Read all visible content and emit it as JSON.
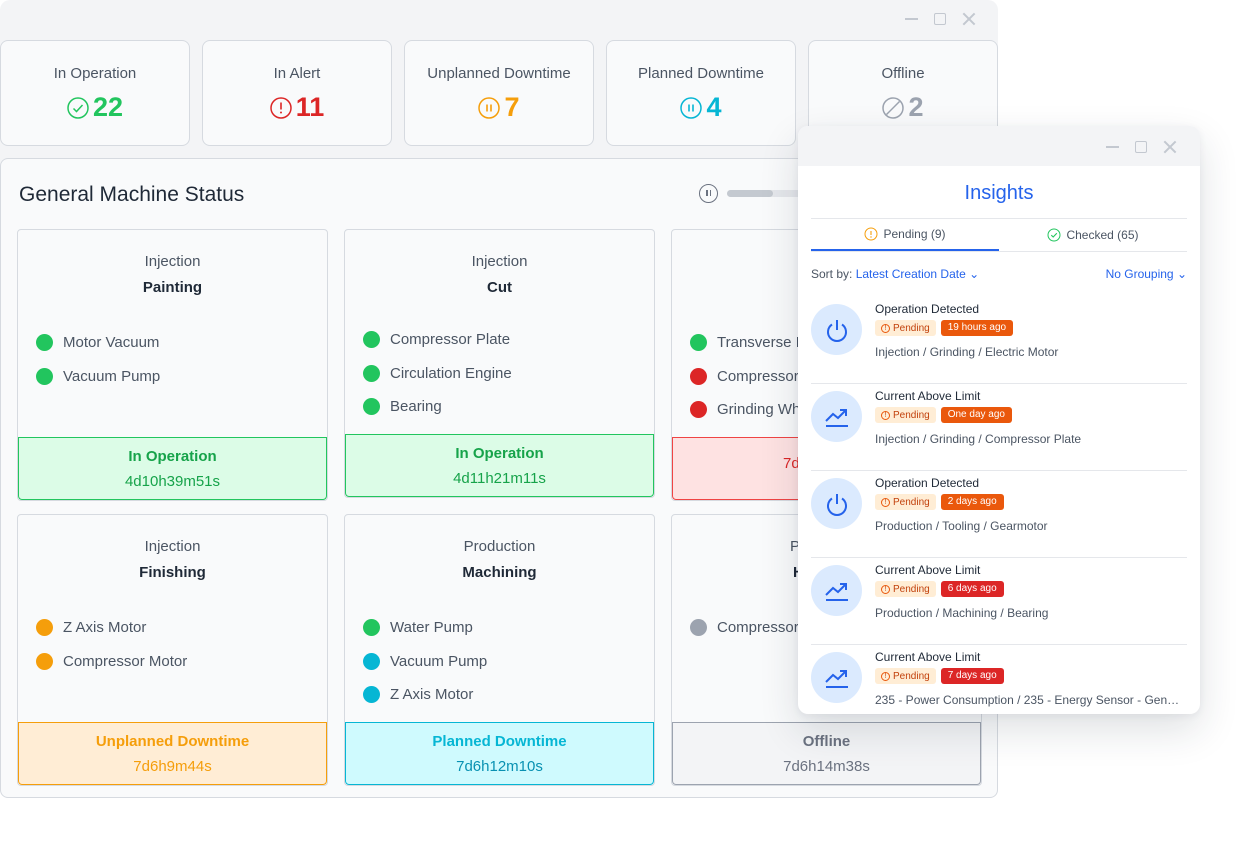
{
  "stats": [
    {
      "label": "In Operation",
      "value": "22",
      "color": "#22c55e",
      "icon": "check-circle-icon"
    },
    {
      "label": "In Alert",
      "value": "11",
      "color": "#dc2626",
      "icon": "alert-circle-icon"
    },
    {
      "label": "Unplanned Downtime",
      "value": "7",
      "color": "#f59e0b",
      "icon": "pause-circle-icon"
    },
    {
      "label": "Planned Downtime",
      "value": "4",
      "color": "#06b6d4",
      "icon": "pause-circle-icon"
    },
    {
      "label": "Offline",
      "value": "2",
      "color": "#9ca3af",
      "icon": "offline-icon"
    }
  ],
  "panel": {
    "title": "General Machine Status",
    "progress": 0.38
  },
  "machines": [
    {
      "area": "Injection",
      "name": "Painting",
      "items": [
        {
          "label": "Motor Vacuum",
          "color": "#22c55e"
        },
        {
          "label": "Vacuum Pump",
          "color": "#22c55e"
        }
      ],
      "status": "In Operation",
      "time": "4d10h39m51s",
      "theme": "green"
    },
    {
      "area": "Injection",
      "name": "Cut",
      "items": [
        {
          "label": "Compressor Plate",
          "color": "#22c55e"
        },
        {
          "label": "Circulation Engine",
          "color": "#22c55e"
        },
        {
          "label": "Bearing",
          "color": "#22c55e"
        }
      ],
      "status": "In Operation",
      "time": "4d11h21m11s",
      "theme": "green"
    },
    {
      "area": "I",
      "name": "",
      "items": [
        {
          "label": "Transverse I",
          "color": "#22c55e"
        },
        {
          "label": "Compressor",
          "color": "#dc2626"
        },
        {
          "label": "Grinding Wh",
          "color": "#dc2626"
        }
      ],
      "status": "",
      "time": "7d",
      "theme": "red"
    },
    {
      "area": "Injection",
      "name": "Finishing",
      "items": [
        {
          "label": "Z Axis Motor",
          "color": "#f59e0b"
        },
        {
          "label": "Compressor Motor",
          "color": "#f59e0b"
        }
      ],
      "status": "Unplanned Downtime",
      "time": "7d6h9m44s",
      "theme": "orange"
    },
    {
      "area": "Production",
      "name": "Machining",
      "items": [
        {
          "label": "Water Pump",
          "color": "#22c55e"
        },
        {
          "label": "Vacuum Pump",
          "color": "#06b6d4"
        },
        {
          "label": "Z Axis Motor",
          "color": "#06b6d4"
        }
      ],
      "status": "Planned Downtime",
      "time": "7d6h12m10s",
      "theme": "cyan"
    },
    {
      "area": "P",
      "name": "H",
      "items": [
        {
          "label": "Compressor",
          "color": "#9ca3af"
        }
      ],
      "status": "Offline",
      "time": "7d6h14m38s",
      "theme": "gray"
    }
  ],
  "insights": {
    "title": "Insights",
    "tabs": [
      {
        "label": "Pending (9)",
        "icon": "info-circle-icon",
        "active": true
      },
      {
        "label": "Checked (65)",
        "icon": "check-circle-icon",
        "active": false
      }
    ],
    "sort_label": "Sort by:",
    "sort_value": "Latest Creation Date",
    "grouping": "No Grouping",
    "items": [
      {
        "title": "Operation Detected",
        "icon": "power-icon",
        "status": "Pending",
        "time": "19 hours ago",
        "time_color": "#ea580c",
        "path": "Injection / Grinding / Electric Motor"
      },
      {
        "title": "Current Above Limit",
        "icon": "trend-up-icon",
        "status": "Pending",
        "time": "One day ago",
        "time_color": "#ea580c",
        "path": "Injection / Grinding / Compressor Plate"
      },
      {
        "title": "Operation Detected",
        "icon": "power-icon",
        "status": "Pending",
        "time": "2 days ago",
        "time_color": "#ea580c",
        "path": "Production / Tooling / Gearmotor"
      },
      {
        "title": "Current Above Limit",
        "icon": "trend-up-icon",
        "status": "Pending",
        "time": "6 days ago",
        "time_color": "#dc2626",
        "path": "Production / Machining / Bearing"
      },
      {
        "title": "Current Above Limit",
        "icon": "trend-up-icon",
        "status": "Pending",
        "time": "7 days ago",
        "time_color": "#dc2626",
        "path": "235 - Power Consumption / 235 - Energy Sensor - General Power Consumption"
      }
    ]
  }
}
